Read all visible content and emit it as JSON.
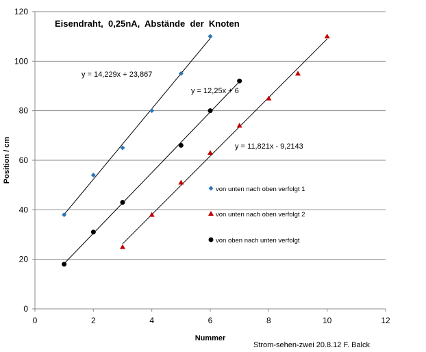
{
  "chart_data": {
    "type": "scatter",
    "title": "Eisendraht,  0,25nA,  Abstände  der  Knoten",
    "xlabel": "Nummer",
    "ylabel": "Position / cm",
    "xlim": [
      0,
      12
    ],
    "ylim": [
      0,
      120
    ],
    "x_ticks": [
      "0",
      "2",
      "4",
      "6",
      "8",
      "10",
      "12"
    ],
    "y_ticks": [
      "0",
      "20",
      "40",
      "60",
      "80",
      "100",
      "120"
    ],
    "grid": "horizontal",
    "legend_position": "right",
    "series": [
      {
        "name": "von unten nach oben verfolgt 1",
        "marker": "diamond",
        "color": "#2e75b6",
        "x": [
          1,
          2,
          3,
          4,
          5,
          6
        ],
        "y": [
          38,
          54,
          65,
          80,
          95,
          110
        ],
        "trendline": {
          "slope": 14.229,
          "intercept": 23.867,
          "x_range": [
            1,
            6
          ],
          "label": "y = 14,229x + 23,867"
        }
      },
      {
        "name": "von unten nach oben verfolgt 2",
        "marker": "triangle",
        "color": "#c00000",
        "x": [
          3,
          4,
          5,
          6,
          7,
          8,
          9,
          10
        ],
        "y": [
          25,
          38,
          51,
          63,
          74,
          85,
          95,
          110
        ],
        "trendline": {
          "slope": 11.821,
          "intercept": -9.2143,
          "x_range": [
            3,
            10
          ],
          "label": "y = 11,821x - 9,2143"
        }
      },
      {
        "name": "von oben nach unten verfolgt",
        "marker": "circle",
        "color": "#000000",
        "x": [
          1,
          2,
          3,
          5,
          6,
          7
        ],
        "y": [
          18,
          31,
          43,
          66,
          80,
          92
        ],
        "trendline": {
          "slope": 12.25,
          "intercept": 6,
          "x_range": [
            1,
            7
          ],
          "label": "y = 12,25x + 6"
        }
      }
    ]
  },
  "credit": "Strom-sehen-zwei 20.8.12 F. Balck"
}
